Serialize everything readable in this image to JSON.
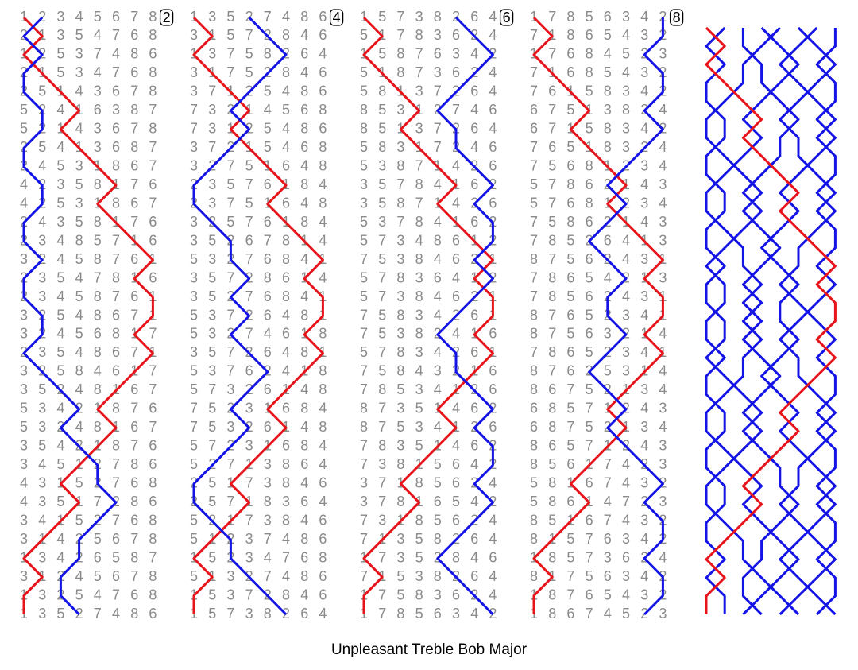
{
  "title": "Unpleasant Treble Bob Major",
  "leads": [
    {
      "label": "2",
      "rows": [
        [
          1,
          2,
          3,
          4,
          5,
          6,
          7,
          8
        ],
        [
          2,
          1,
          3,
          5,
          4,
          7,
          6,
          8
        ],
        [
          1,
          2,
          5,
          3,
          7,
          4,
          8,
          6
        ],
        [
          2,
          1,
          5,
          3,
          4,
          7,
          6,
          8
        ],
        [
          2,
          5,
          1,
          4,
          3,
          6,
          7,
          8
        ],
        [
          5,
          2,
          4,
          1,
          6,
          3,
          8,
          7
        ],
        [
          5,
          2,
          1,
          4,
          3,
          6,
          7,
          8
        ],
        [
          2,
          5,
          4,
          1,
          3,
          6,
          8,
          7
        ],
        [
          2,
          4,
          5,
          3,
          1,
          8,
          6,
          7
        ],
        [
          4,
          2,
          3,
          5,
          8,
          1,
          7,
          6
        ],
        [
          4,
          2,
          5,
          3,
          1,
          8,
          6,
          7
        ],
        [
          2,
          4,
          3,
          5,
          8,
          1,
          7,
          6
        ],
        [
          2,
          3,
          4,
          8,
          5,
          7,
          1,
          6
        ],
        [
          3,
          2,
          4,
          5,
          8,
          7,
          6,
          1
        ],
        [
          2,
          3,
          5,
          4,
          7,
          8,
          1,
          6
        ],
        [
          2,
          3,
          4,
          5,
          8,
          7,
          6,
          1
        ],
        [
          3,
          2,
          5,
          4,
          8,
          6,
          7,
          1
        ],
        [
          3,
          2,
          4,
          5,
          6,
          8,
          1,
          7
        ],
        [
          2,
          3,
          5,
          4,
          8,
          6,
          7,
          1
        ],
        [
          3,
          2,
          5,
          8,
          4,
          6,
          1,
          7
        ],
        [
          3,
          5,
          2,
          4,
          8,
          1,
          6,
          7
        ],
        [
          5,
          3,
          4,
          2,
          1,
          8,
          7,
          6
        ],
        [
          5,
          3,
          2,
          4,
          8,
          1,
          6,
          7
        ],
        [
          3,
          5,
          4,
          2,
          1,
          8,
          7,
          6
        ],
        [
          3,
          4,
          5,
          1,
          2,
          7,
          8,
          6
        ],
        [
          4,
          3,
          1,
          5,
          2,
          7,
          6,
          8
        ],
        [
          4,
          3,
          5,
          1,
          7,
          2,
          8,
          6
        ],
        [
          3,
          4,
          1,
          5,
          2,
          7,
          6,
          8
        ],
        [
          3,
          1,
          4,
          2,
          5,
          6,
          7,
          8
        ],
        [
          1,
          3,
          4,
          2,
          6,
          5,
          8,
          7
        ],
        [
          3,
          1,
          2,
          4,
          5,
          6,
          7,
          8
        ],
        [
          1,
          3,
          2,
          5,
          4,
          7,
          6,
          8
        ],
        [
          1,
          3,
          5,
          2,
          7,
          4,
          8,
          6
        ]
      ]
    },
    {
      "label": "4",
      "rows": [
        [
          1,
          3,
          5,
          2,
          7,
          4,
          8,
          6
        ],
        [
          3,
          1,
          5,
          7,
          2,
          8,
          4,
          6
        ],
        [
          1,
          3,
          7,
          5,
          8,
          2,
          6,
          4
        ],
        [
          3,
          1,
          7,
          5,
          2,
          8,
          4,
          6
        ],
        [
          3,
          7,
          1,
          2,
          5,
          4,
          8,
          6
        ],
        [
          7,
          3,
          2,
          1,
          4,
          5,
          6,
          8
        ],
        [
          7,
          3,
          1,
          2,
          5,
          4,
          8,
          6
        ],
        [
          3,
          7,
          2,
          1,
          5,
          4,
          6,
          8
        ],
        [
          3,
          2,
          7,
          5,
          1,
          6,
          4,
          8
        ],
        [
          2,
          3,
          5,
          7,
          6,
          1,
          8,
          4
        ],
        [
          2,
          3,
          7,
          5,
          1,
          6,
          4,
          8
        ],
        [
          3,
          2,
          5,
          7,
          6,
          1,
          8,
          4
        ],
        [
          3,
          5,
          2,
          6,
          7,
          8,
          1,
          4
        ],
        [
          5,
          3,
          2,
          7,
          6,
          8,
          4,
          1
        ],
        [
          3,
          5,
          7,
          2,
          8,
          6,
          1,
          4
        ],
        [
          3,
          5,
          2,
          7,
          6,
          8,
          4,
          1
        ],
        [
          5,
          3,
          7,
          2,
          6,
          4,
          8,
          1
        ],
        [
          5,
          3,
          2,
          7,
          4,
          6,
          1,
          8
        ],
        [
          3,
          5,
          7,
          2,
          6,
          4,
          8,
          1
        ],
        [
          5,
          3,
          7,
          6,
          2,
          4,
          1,
          8
        ],
        [
          5,
          7,
          3,
          2,
          6,
          1,
          4,
          8
        ],
        [
          7,
          5,
          2,
          3,
          1,
          6,
          8,
          4
        ],
        [
          7,
          5,
          3,
          2,
          6,
          1,
          4,
          8
        ],
        [
          5,
          7,
          2,
          3,
          1,
          6,
          8,
          4
        ],
        [
          5,
          2,
          7,
          1,
          3,
          8,
          6,
          4
        ],
        [
          2,
          5,
          1,
          7,
          3,
          8,
          4,
          6
        ],
        [
          2,
          5,
          7,
          1,
          8,
          3,
          6,
          4
        ],
        [
          5,
          2,
          1,
          7,
          3,
          8,
          4,
          6
        ],
        [
          5,
          1,
          2,
          3,
          7,
          4,
          8,
          6
        ],
        [
          1,
          5,
          2,
          3,
          4,
          7,
          6,
          8
        ],
        [
          5,
          1,
          3,
          2,
          7,
          4,
          8,
          6
        ],
        [
          1,
          5,
          3,
          7,
          2,
          8,
          4,
          6
        ],
        [
          1,
          5,
          7,
          3,
          8,
          2,
          6,
          4
        ]
      ]
    },
    {
      "label": "6",
      "rows": [
        [
          1,
          5,
          7,
          3,
          8,
          2,
          6,
          4
        ],
        [
          5,
          1,
          7,
          8,
          3,
          6,
          2,
          4
        ],
        [
          1,
          5,
          8,
          7,
          6,
          3,
          4,
          2
        ],
        [
          5,
          1,
          8,
          7,
          3,
          6,
          2,
          4
        ],
        [
          5,
          8,
          1,
          3,
          7,
          2,
          6,
          4
        ],
        [
          8,
          5,
          3,
          1,
          2,
          7,
          4,
          6
        ],
        [
          8,
          5,
          1,
          3,
          7,
          2,
          6,
          4
        ],
        [
          5,
          8,
          3,
          1,
          7,
          2,
          4,
          6
        ],
        [
          5,
          3,
          8,
          7,
          1,
          4,
          2,
          6
        ],
        [
          3,
          5,
          7,
          8,
          4,
          1,
          6,
          2
        ],
        [
          3,
          5,
          8,
          7,
          1,
          4,
          2,
          6
        ],
        [
          5,
          3,
          7,
          8,
          4,
          1,
          6,
          2
        ],
        [
          5,
          7,
          3,
          4,
          8,
          6,
          1,
          2
        ],
        [
          7,
          5,
          3,
          8,
          4,
          6,
          2,
          1
        ],
        [
          5,
          7,
          8,
          3,
          6,
          4,
          1,
          2
        ],
        [
          5,
          7,
          3,
          8,
          4,
          6,
          2,
          1
        ],
        [
          7,
          5,
          8,
          3,
          4,
          2,
          6,
          1
        ],
        [
          7,
          5,
          3,
          8,
          2,
          4,
          1,
          6
        ],
        [
          5,
          7,
          8,
          3,
          4,
          2,
          6,
          1
        ],
        [
          7,
          5,
          8,
          4,
          3,
          2,
          1,
          6
        ],
        [
          7,
          8,
          5,
          3,
          4,
          1,
          2,
          6
        ],
        [
          8,
          7,
          3,
          5,
          1,
          4,
          6,
          2
        ],
        [
          8,
          7,
          5,
          3,
          4,
          1,
          2,
          6
        ],
        [
          7,
          8,
          3,
          5,
          1,
          4,
          6,
          2
        ],
        [
          7,
          3,
          8,
          1,
          5,
          6,
          4,
          2
        ],
        [
          3,
          7,
          1,
          8,
          5,
          6,
          2,
          4
        ],
        [
          3,
          7,
          8,
          1,
          6,
          5,
          4,
          2
        ],
        [
          7,
          3,
          1,
          8,
          5,
          6,
          2,
          4
        ],
        [
          7,
          1,
          3,
          5,
          8,
          2,
          6,
          4
        ],
        [
          1,
          7,
          3,
          5,
          2,
          8,
          4,
          6
        ],
        [
          7,
          1,
          5,
          3,
          8,
          2,
          6,
          4
        ],
        [
          1,
          7,
          5,
          8,
          3,
          6,
          2,
          4
        ],
        [
          1,
          7,
          8,
          5,
          6,
          3,
          4,
          2
        ]
      ]
    },
    {
      "label": "8",
      "rows": [
        [
          1,
          7,
          8,
          5,
          6,
          3,
          4,
          2
        ],
        [
          7,
          1,
          8,
          6,
          5,
          4,
          3,
          2
        ],
        [
          1,
          7,
          6,
          8,
          4,
          5,
          2,
          3
        ],
        [
          7,
          1,
          6,
          8,
          5,
          4,
          3,
          2
        ],
        [
          7,
          6,
          1,
          5,
          8,
          3,
          4,
          2
        ],
        [
          6,
          7,
          5,
          1,
          3,
          8,
          2,
          4
        ],
        [
          6,
          7,
          1,
          5,
          8,
          3,
          4,
          2
        ],
        [
          7,
          6,
          5,
          1,
          8,
          3,
          2,
          4
        ],
        [
          7,
          5,
          6,
          8,
          1,
          2,
          3,
          4
        ],
        [
          5,
          7,
          8,
          6,
          2,
          1,
          4,
          3
        ],
        [
          5,
          7,
          6,
          8,
          1,
          2,
          3,
          4
        ],
        [
          7,
          5,
          8,
          6,
          2,
          1,
          4,
          3
        ],
        [
          7,
          8,
          5,
          2,
          6,
          4,
          1,
          3
        ],
        [
          8,
          7,
          5,
          6,
          2,
          4,
          3,
          1
        ],
        [
          7,
          8,
          6,
          5,
          4,
          2,
          1,
          3
        ],
        [
          7,
          8,
          5,
          6,
          2,
          4,
          3,
          1
        ],
        [
          8,
          7,
          6,
          5,
          2,
          3,
          4,
          1
        ],
        [
          8,
          7,
          5,
          6,
          3,
          2,
          1,
          4
        ],
        [
          7,
          8,
          6,
          5,
          2,
          3,
          4,
          1
        ],
        [
          8,
          7,
          6,
          2,
          5,
          3,
          1,
          4
        ],
        [
          8,
          6,
          7,
          5,
          2,
          1,
          3,
          4
        ],
        [
          6,
          8,
          5,
          7,
          1,
          2,
          4,
          3
        ],
        [
          6,
          8,
          7,
          5,
          2,
          1,
          3,
          4
        ],
        [
          8,
          6,
          5,
          7,
          1,
          2,
          4,
          3
        ],
        [
          8,
          5,
          6,
          1,
          7,
          4,
          2,
          3
        ],
        [
          5,
          8,
          1,
          6,
          7,
          4,
          3,
          2
        ],
        [
          5,
          8,
          6,
          1,
          4,
          7,
          2,
          3
        ],
        [
          8,
          5,
          1,
          6,
          7,
          4,
          3,
          2
        ],
        [
          8,
          1,
          5,
          7,
          6,
          3,
          4,
          2
        ],
        [
          1,
          8,
          5,
          7,
          3,
          6,
          2,
          4
        ],
        [
          8,
          1,
          7,
          5,
          6,
          3,
          4,
          2
        ],
        [
          1,
          8,
          7,
          6,
          5,
          4,
          3,
          2
        ],
        [
          1,
          8,
          6,
          7,
          4,
          5,
          2,
          3
        ]
      ]
    }
  ]
}
